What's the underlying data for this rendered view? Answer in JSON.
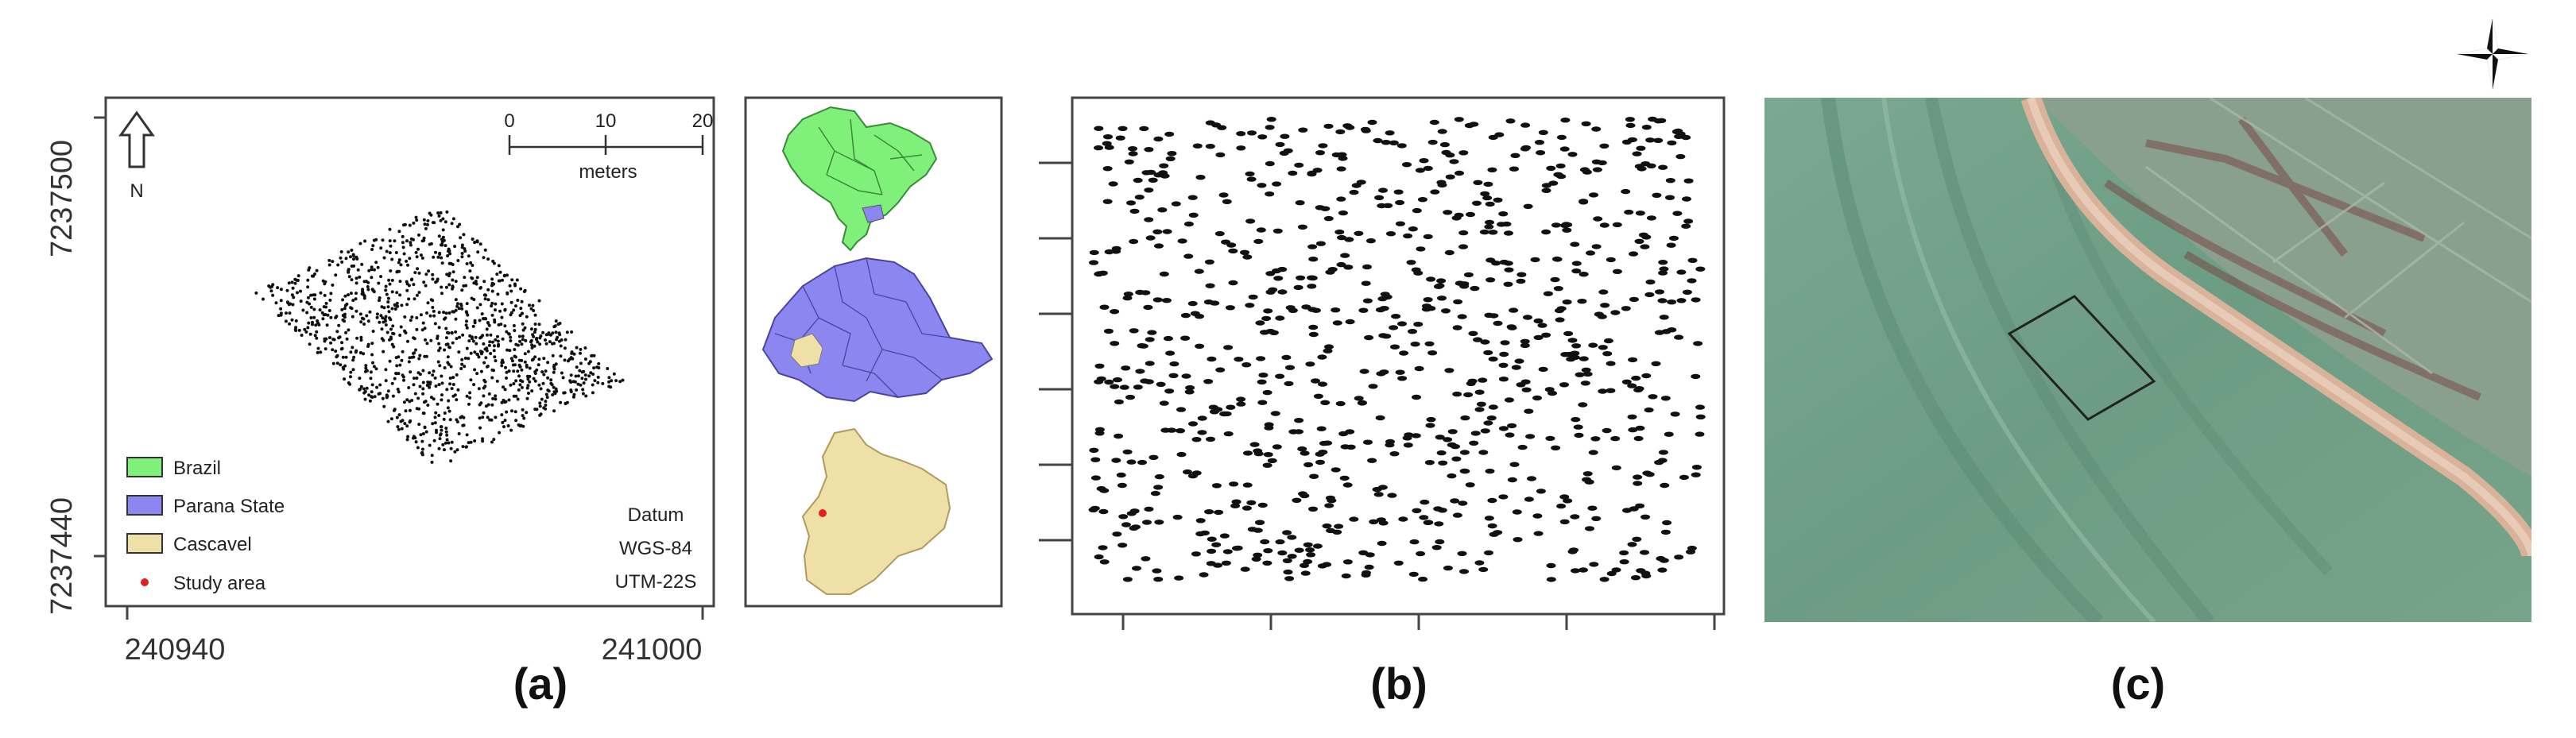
{
  "panel_a": {
    "y_ticks": [
      "7237500",
      "7237440"
    ],
    "x_ticks": [
      "240940",
      "241000"
    ],
    "north_label": "N",
    "scale_ticks": [
      "0",
      "10",
      "20"
    ],
    "scale_unit": "meters",
    "legend": [
      {
        "label": "Brazil",
        "color": "#7ff07a"
      },
      {
        "label": "Parana State",
        "color": "#8c86f0"
      },
      {
        "label": "Cascavel",
        "color": "#efe0a8"
      },
      {
        "label": "Study area",
        "color": "#e02020"
      }
    ],
    "datum": [
      "Datum",
      "WGS-84",
      "UTM-22S"
    ],
    "label": "(a)"
  },
  "inset_colors": {
    "brazil": "#7ff07a",
    "parana": "#8c86f0",
    "cascavel": "#efe0a8",
    "point": "#e02020"
  },
  "panel_b": {
    "label": "(b)"
  },
  "panel_c": {
    "label": "(c)",
    "compass_icon": "compass-star-icon",
    "colors": {
      "field": "#6f9e86",
      "road": "#d9b29a",
      "dark": "#7a4a48"
    }
  }
}
